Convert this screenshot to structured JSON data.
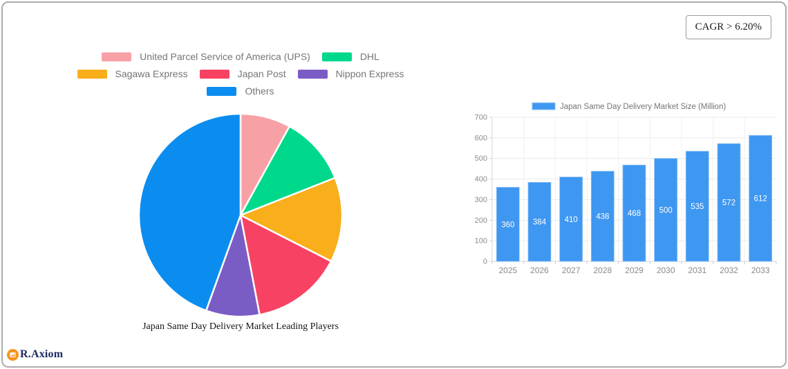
{
  "badge": {
    "cagr_label": "CAGR > 6.20%"
  },
  "brand": {
    "name": "R.Axiom",
    "text_color": "#1B2A60",
    "icon_color": "#F7941D"
  },
  "chart_data": [
    {
      "type": "pie",
      "title": "Japan Same Day Delivery Market Leading Players",
      "labels": [
        "United Parcel Service of America (UPS)",
        "DHL",
        "Sagawa Express",
        "Japan Post",
        "Nippon Express",
        "Others"
      ],
      "values_pct_estimated": [
        8,
        11,
        13.5,
        14.5,
        8.5,
        44.5
      ],
      "colors": [
        "#F7A1A7",
        "#00D98B",
        "#F9AE1B",
        "#F84263",
        "#7A5CC5",
        "#0B8DF0"
      ],
      "legend_position": "top",
      "legend_rows": [
        [
          0,
          1
        ],
        [
          2,
          3,
          4
        ],
        [
          5
        ]
      ],
      "slice_separator_color": "#FFFFFF"
    },
    {
      "type": "bar",
      "legend_label": "Japan Same Day Delivery Market Size (Million)",
      "categories": [
        "2025",
        "2026",
        "2027",
        "2028",
        "2029",
        "2030",
        "2031",
        "2032",
        "2033"
      ],
      "values": [
        360,
        384,
        410,
        438,
        468,
        500,
        535,
        572,
        612
      ],
      "ylim": [
        0,
        700
      ],
      "ytick_step": 100,
      "bar_color": "#3E97F1",
      "bar_border_color": "#8FC1F5",
      "value_label_color": "#FFFFFF",
      "axis_text_color": "#8A8A8A",
      "legend_text_color": "#757575",
      "grid": true,
      "legend_position": "top"
    }
  ]
}
